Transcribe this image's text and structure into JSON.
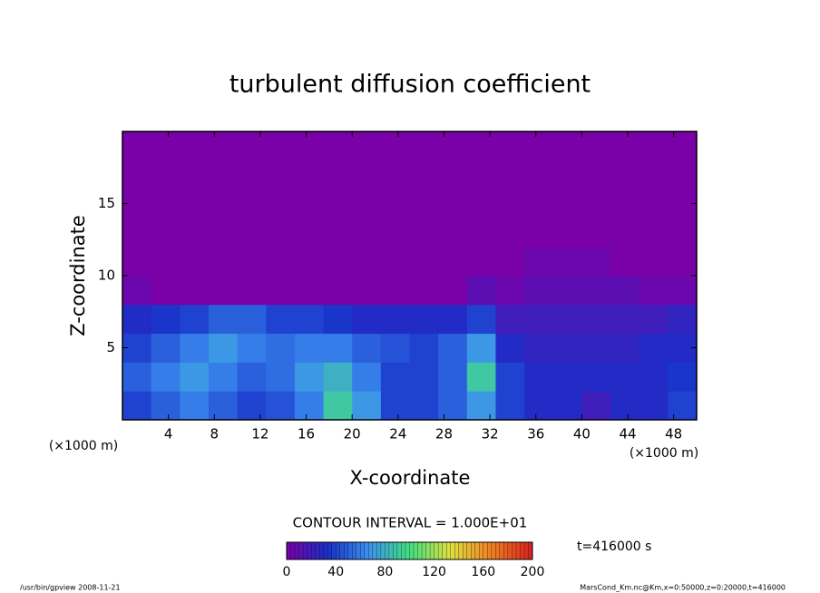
{
  "chart_data": {
    "type": "heatmap",
    "title": "turbulent diffusion coefficient",
    "x_label": "X-coordinate",
    "y_label": "Z-coordinate",
    "x_unit": "(×1000 m)",
    "y_unit": "(×1000 m)",
    "contour_note": "CONTOUR INTERVAL = 1.000E+01",
    "time_note": "t=416000 s",
    "footer_left": "/usr/bin/gpview  2008-11-21",
    "footer_right": "MarsCond_Km.nc@Km,x=0:50000,z=0:20000,t=416000",
    "xlim": [
      0,
      50
    ],
    "ylim": [
      0,
      20
    ],
    "xticks": [
      4,
      8,
      12,
      16,
      20,
      24,
      28,
      32,
      36,
      40,
      44,
      48
    ],
    "yticks": [
      5,
      10,
      15
    ],
    "xbins": [
      0,
      2.5,
      5,
      7.5,
      10,
      12.5,
      15,
      17.5,
      20,
      22.5,
      25,
      27.5,
      30,
      32.5,
      35,
      37.5,
      40,
      42.5,
      45,
      47.5,
      50
    ],
    "ybins": [
      0,
      2,
      4,
      6,
      8,
      10,
      12,
      14,
      16,
      18,
      20
    ],
    "z": [
      [
        40,
        50,
        60,
        50,
        40,
        45,
        60,
        90,
        70,
        40,
        40,
        50,
        70,
        40,
        30,
        30,
        20,
        30,
        30,
        40
      ],
      [
        50,
        60,
        70,
        60,
        50,
        55,
        70,
        80,
        60,
        40,
        40,
        50,
        90,
        40,
        30,
        30,
        30,
        30,
        30,
        35
      ],
      [
        40,
        50,
        60,
        70,
        60,
        55,
        60,
        60,
        50,
        45,
        40,
        50,
        70,
        30,
        25,
        25,
        25,
        25,
        30,
        30
      ],
      [
        30,
        35,
        40,
        50,
        50,
        40,
        40,
        35,
        30,
        30,
        30,
        30,
        40,
        20,
        20,
        20,
        20,
        20,
        20,
        25
      ],
      [
        5,
        0,
        0,
        0,
        0,
        0,
        0,
        0,
        0,
        0,
        0,
        0,
        10,
        5,
        10,
        10,
        10,
        10,
        5,
        5
      ],
      [
        0,
        0,
        0,
        0,
        0,
        0,
        0,
        0,
        0,
        0,
        0,
        0,
        0,
        0,
        5,
        5,
        5,
        0,
        0,
        0
      ],
      [
        0,
        0,
        0,
        0,
        0,
        0,
        0,
        0,
        0,
        0,
        0,
        0,
        0,
        0,
        0,
        0,
        0,
        0,
        0,
        0
      ],
      [
        0,
        0,
        0,
        0,
        0,
        0,
        0,
        0,
        0,
        0,
        0,
        0,
        0,
        0,
        0,
        0,
        0,
        0,
        0,
        0
      ],
      [
        0,
        0,
        0,
        0,
        0,
        0,
        0,
        0,
        0,
        0,
        0,
        0,
        0,
        0,
        0,
        0,
        0,
        0,
        0,
        0
      ],
      [
        0,
        0,
        0,
        0,
        0,
        0,
        0,
        0,
        0,
        0,
        0,
        0,
        0,
        0,
        0,
        0,
        0,
        0,
        0,
        0
      ]
    ],
    "clim": [
      0,
      200
    ],
    "colormap": [
      "#7a00a8",
      "#1830c8",
      "#3c90f0",
      "#40e080",
      "#e0e040",
      "#f08020",
      "#d82020"
    ],
    "cticks": [
      0,
      40,
      80,
      120,
      160,
      200
    ]
  }
}
